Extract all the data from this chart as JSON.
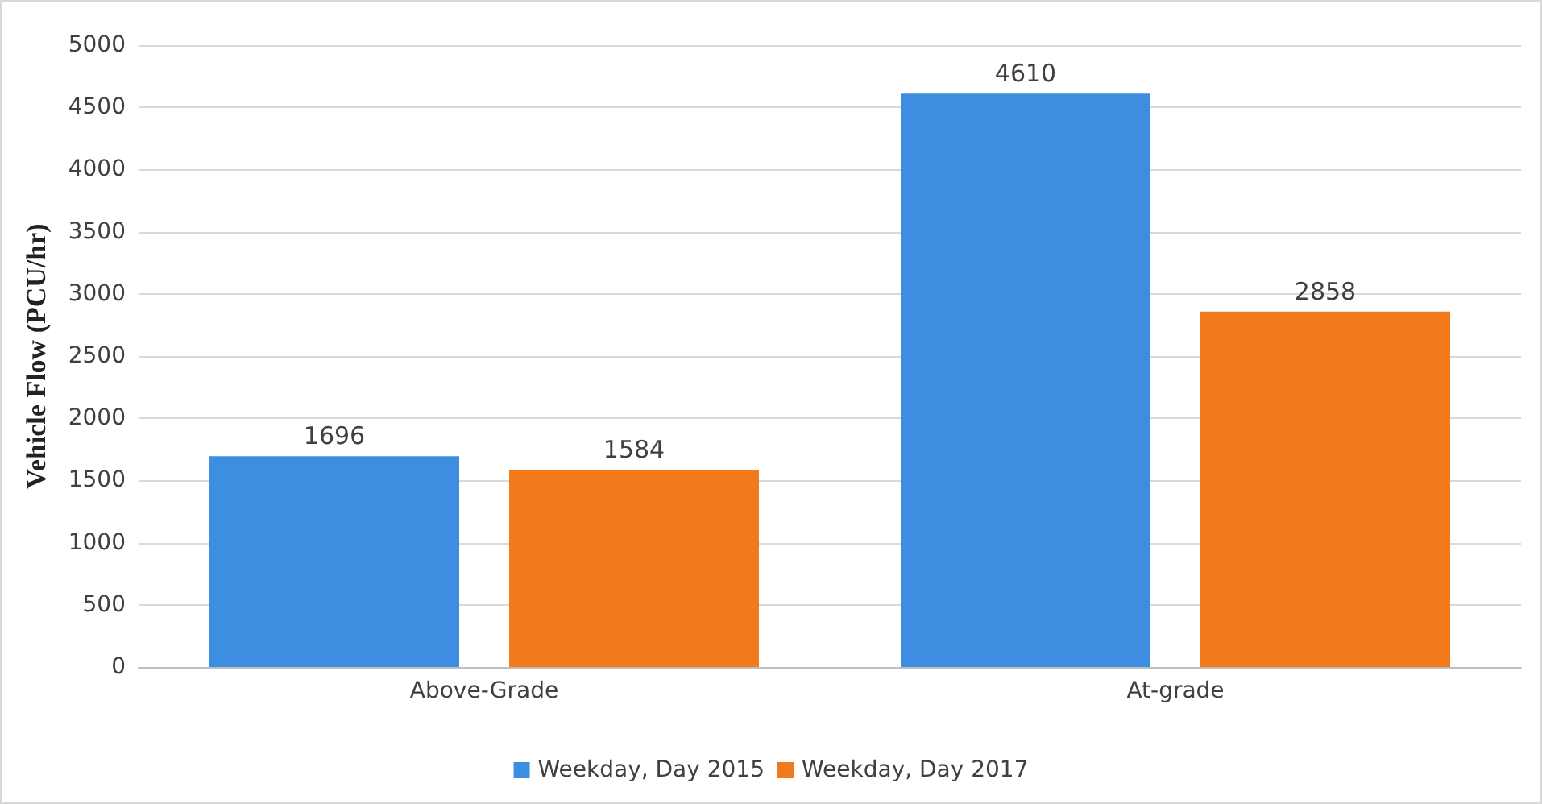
{
  "chart_data": {
    "type": "bar",
    "ylabel": "Vehicle Flow (PCU/hr)",
    "categories": [
      "Above-Grade",
      "At-grade"
    ],
    "series": [
      {
        "name": "Weekday, Day 2015",
        "color": "#3d8ee0",
        "values": [
          1696,
          4610
        ]
      },
      {
        "name": "Weekday, Day 2017",
        "color": "#f07a1c",
        "values": [
          1584,
          2858
        ]
      }
    ],
    "ylim": [
      0,
      5000
    ],
    "yticks": [
      0,
      500,
      1000,
      1500,
      2000,
      2500,
      3000,
      3500,
      4000,
      4500,
      5000
    ],
    "grid": "y",
    "legend": "bottom",
    "data_labels": true
  }
}
